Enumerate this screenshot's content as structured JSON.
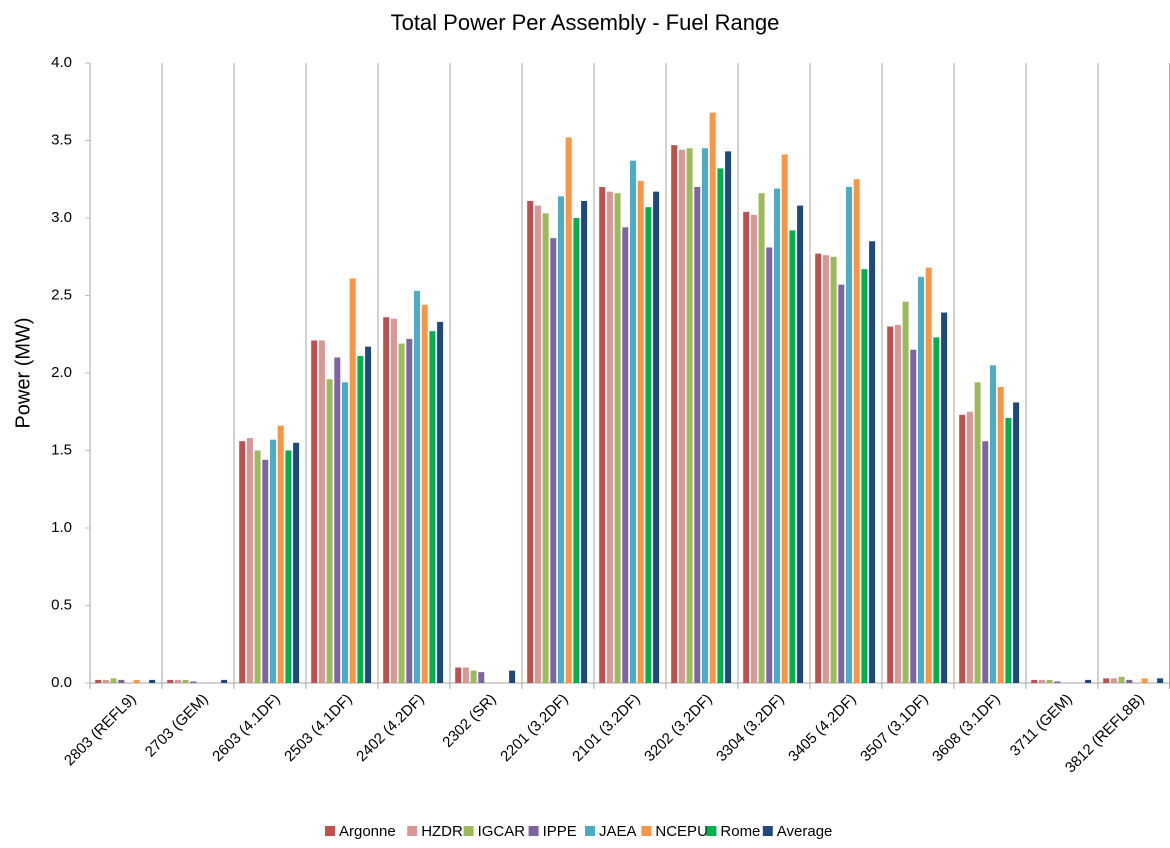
{
  "chart_data": {
    "type": "bar",
    "title": "Total Power Per Assembly - Fuel Range",
    "y_label": "Power (MW)",
    "categories": [
      "2803 (REFL9)",
      "2703 (GEM)",
      "2603 (4.1DF)",
      "2503 (4.1DF)",
      "2402 (4.2DF)",
      "2302 (SR)",
      "2201 (3.2DF)",
      "2101 (3.2DF)",
      "3202 (3.2DF)",
      "3304 (3.2DF)",
      "3405 (4.2DF)",
      "3507 (3.1DF)",
      "3608 (3.1DF)",
      "3711 (GEM)",
      "3812 (REFL8B)"
    ],
    "series": [
      {
        "name": "Argonne",
        "color": "#c0504d",
        "values": [
          0.02,
          0.02,
          1.56,
          2.21,
          2.36,
          0.1,
          3.11,
          3.2,
          3.47,
          3.04,
          2.77,
          2.3,
          1.73,
          0.02,
          0.03
        ]
      },
      {
        "name": "HZDR",
        "color": "#d99694",
        "values": [
          0.02,
          0.02,
          1.58,
          2.21,
          2.35,
          0.1,
          3.08,
          3.17,
          3.44,
          3.02,
          2.76,
          2.31,
          1.75,
          0.02,
          0.03
        ]
      },
      {
        "name": "IGCAR",
        "color": "#9bbb59",
        "values": [
          0.03,
          0.02,
          1.5,
          1.96,
          2.19,
          0.08,
          3.03,
          3.16,
          3.45,
          3.16,
          2.75,
          2.46,
          1.94,
          0.02,
          0.04
        ]
      },
      {
        "name": "IPPE",
        "color": "#8064a2",
        "values": [
          0.02,
          0.01,
          1.44,
          2.1,
          2.22,
          0.07,
          2.87,
          2.94,
          3.2,
          2.81,
          2.57,
          2.15,
          1.56,
          0.01,
          0.02
        ]
      },
      {
        "name": "JAEA",
        "color": "#4bacc6",
        "values": [
          0,
          0,
          1.57,
          1.94,
          2.53,
          0,
          3.14,
          3.37,
          3.45,
          3.19,
          3.2,
          2.62,
          2.05,
          0,
          0
        ]
      },
      {
        "name": "NCEPU",
        "color": "#f79646",
        "values": [
          0.02,
          0,
          1.66,
          2.61,
          2.44,
          0,
          3.52,
          3.24,
          3.68,
          3.41,
          3.25,
          2.68,
          1.91,
          0,
          0.03
        ]
      },
      {
        "name": "Rome",
        "color": "#00b050",
        "values": [
          0,
          0,
          1.5,
          2.11,
          2.27,
          0,
          3.0,
          3.07,
          3.32,
          2.92,
          2.67,
          2.23,
          1.71,
          0,
          0
        ]
      },
      {
        "name": "Average",
        "color": "#1f497d",
        "values": [
          0.02,
          0.02,
          1.55,
          2.17,
          2.33,
          0.08,
          3.11,
          3.17,
          3.43,
          3.08,
          2.85,
          2.39,
          1.81,
          0.02,
          0.03
        ]
      }
    ],
    "ylim": [
      0,
      4
    ],
    "yticks": [
      {
        "value": 0,
        "label": "0.0"
      },
      0.5,
      {
        "value": 1,
        "label": "1.0"
      },
      1.5,
      {
        "value": 2,
        "label": "2.0"
      },
      2.5,
      {
        "value": 3,
        "label": "3.0"
      },
      3.5,
      {
        "value": 4,
        "label": "4.0"
      }
    ],
    "grid": false,
    "legend": "bottom"
  }
}
